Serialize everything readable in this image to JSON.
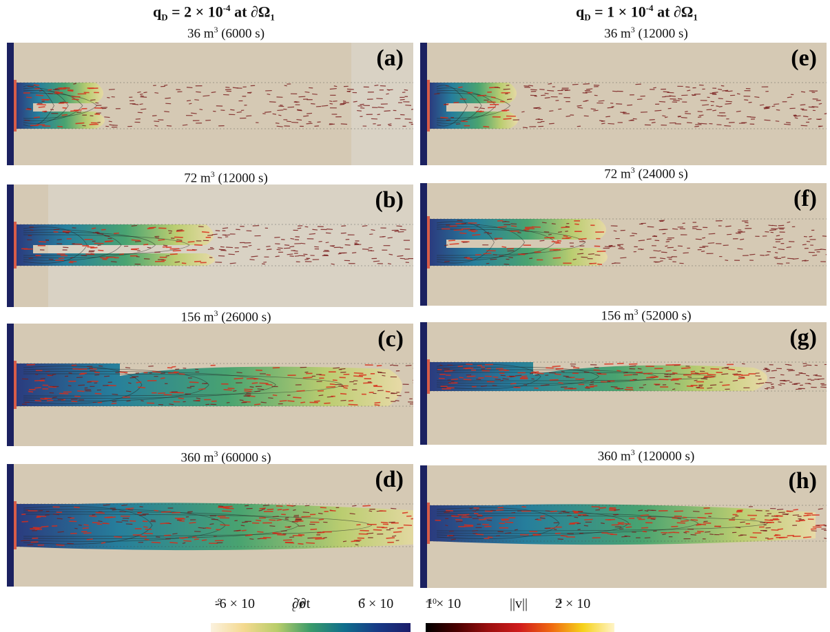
{
  "columns": {
    "left": {
      "prefix": "q",
      "sub": "D",
      "text": " = 2 × 10",
      "exp": "-4",
      "suffix": " at ∂Ω",
      "suffix_sub": "1"
    },
    "right": {
      "prefix": "q",
      "sub": "D",
      "text": " = 1 × 10",
      "exp": "-4",
      "suffix": " at ∂Ω",
      "suffix_sub": "1"
    }
  },
  "panels": [
    {
      "label": "(a)",
      "vol": "36 m",
      "time": " (6000 s)"
    },
    {
      "label": "(b)",
      "vol": "72 m",
      "time": " (12000 s)"
    },
    {
      "label": "(c)",
      "vol": "156 m",
      "time": " (26000 s)"
    },
    {
      "label": "(d)",
      "vol": "360 m",
      "time": " (60000 s)"
    },
    {
      "label": "(e)",
      "vol": "36 m",
      "time": " (12000 s)"
    },
    {
      "label": "(f)",
      "vol": "72 m",
      "time": " (24000 s)"
    },
    {
      "label": "(g)",
      "vol": "156 m",
      "time": " (52000 s)"
    },
    {
      "label": "(h)",
      "vol": "360 m",
      "time": " (120000 s)"
    }
  ],
  "vol_exp": "3",
  "colorbars": {
    "rate": {
      "min": "-6 × 10",
      "min_exp": "-9",
      "label": "∂ø",
      "label_sub": "c",
      "label_end": "/∂t",
      "max": "6 × 10",
      "max_exp": "-7",
      "colors": [
        "#fbf1de",
        "#f4d98f",
        "#b8cd6a",
        "#3a9a6a",
        "#0f6e8c",
        "#173a86",
        "#1c1d6a"
      ]
    },
    "velocity": {
      "min": "1 × 10",
      "min_exp": "-10",
      "label": "||v||",
      "max": "2 × 10",
      "max_exp": "-3",
      "colors": [
        "#000000",
        "#4a0000",
        "#9b0f0f",
        "#d11c1c",
        "#f06a10",
        "#f6d21a",
        "#fff4c8"
      ]
    }
  },
  "colors": {
    "background": "#d5c9b4",
    "light_zone": "#d9d2c4",
    "arrow": "#7a1e1e",
    "arrow_hot": "#d92d1a",
    "wall": "#1b2160"
  }
}
